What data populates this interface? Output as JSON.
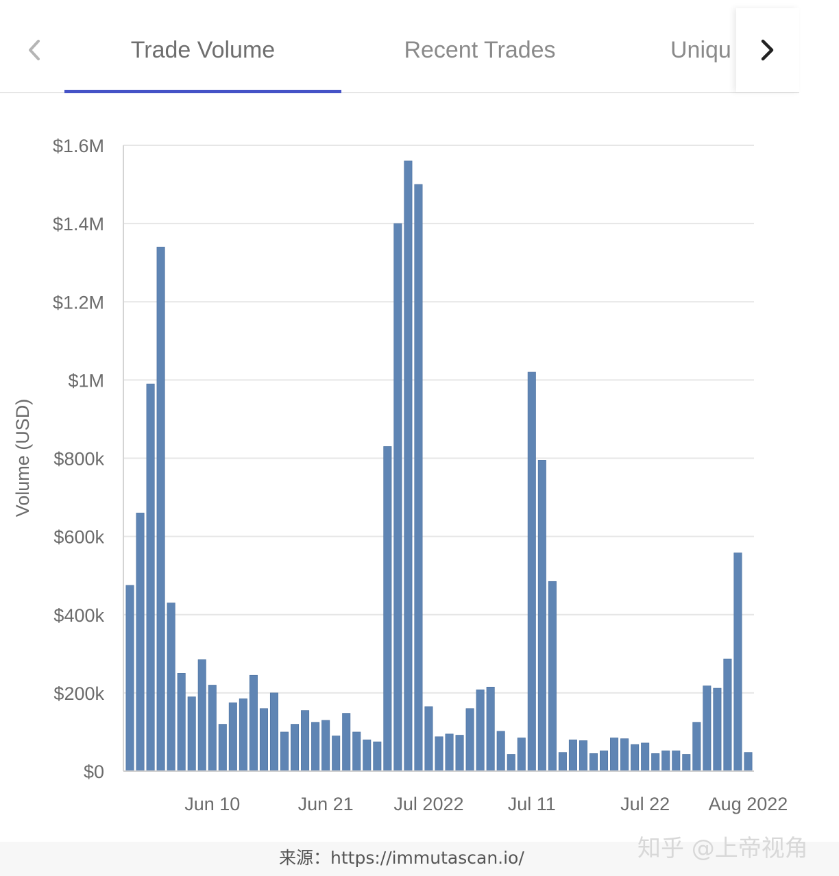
{
  "tabs": [
    {
      "label": "Trade Volume",
      "active": true
    },
    {
      "label": "Recent Trades",
      "active": false
    },
    {
      "label": "Uniqu",
      "active": false
    }
  ],
  "icons": {
    "prev": "chevron-left-icon",
    "next": "chevron-right-icon"
  },
  "colors": {
    "bar": "#5f85b4",
    "accent": "#4553c7",
    "grid": "#e6e6e6"
  },
  "chart_data": {
    "type": "bar",
    "ylabel": "Volume (USD)",
    "ylim": [
      0,
      1600000
    ],
    "y_ticks": [
      {
        "value": 0,
        "label": "$0"
      },
      {
        "value": 200000,
        "label": "$200k"
      },
      {
        "value": 400000,
        "label": "$400k"
      },
      {
        "value": 600000,
        "label": "$600k"
      },
      {
        "value": 800000,
        "label": "$800k"
      },
      {
        "value": 1000000,
        "label": "$1M"
      },
      {
        "value": 1200000,
        "label": "$1.2M"
      },
      {
        "value": 1400000,
        "label": "$1.4M"
      },
      {
        "value": 1600000,
        "label": "$1.6M"
      }
    ],
    "x_ticks": [
      {
        "date": "2022-06-10",
        "label": "Jun 10"
      },
      {
        "date": "2022-06-21",
        "label": "Jun 21"
      },
      {
        "date": "2022-07-01",
        "label": "Jul 2022"
      },
      {
        "date": "2022-07-11",
        "label": "Jul 11"
      },
      {
        "date": "2022-07-22",
        "label": "Jul 22"
      },
      {
        "date": "2022-08-01",
        "label": "Aug 2022"
      }
    ],
    "grid": true,
    "categories": [
      "2022-06-02",
      "2022-06-03",
      "2022-06-04",
      "2022-06-05",
      "2022-06-06",
      "2022-06-07",
      "2022-06-08",
      "2022-06-09",
      "2022-06-10",
      "2022-06-11",
      "2022-06-12",
      "2022-06-13",
      "2022-06-14",
      "2022-06-15",
      "2022-06-16",
      "2022-06-17",
      "2022-06-18",
      "2022-06-19",
      "2022-06-20",
      "2022-06-21",
      "2022-06-22",
      "2022-06-23",
      "2022-06-24",
      "2022-06-25",
      "2022-06-26",
      "2022-06-27",
      "2022-06-28",
      "2022-06-29",
      "2022-06-30",
      "2022-07-01",
      "2022-07-02",
      "2022-07-03",
      "2022-07-04",
      "2022-07-05",
      "2022-07-06",
      "2022-07-07",
      "2022-07-08",
      "2022-07-09",
      "2022-07-10",
      "2022-07-11",
      "2022-07-12",
      "2022-07-13",
      "2022-07-14",
      "2022-07-15",
      "2022-07-16",
      "2022-07-17",
      "2022-07-18",
      "2022-07-19",
      "2022-07-20",
      "2022-07-21",
      "2022-07-22",
      "2022-07-23",
      "2022-07-24",
      "2022-07-25",
      "2022-07-26",
      "2022-07-27",
      "2022-07-28",
      "2022-07-29",
      "2022-07-30",
      "2022-07-31",
      "2022-08-01"
    ],
    "values": [
      475000,
      660000,
      990000,
      1340000,
      430000,
      250000,
      190000,
      285000,
      220000,
      120000,
      175000,
      185000,
      245000,
      160000,
      200000,
      100000,
      120000,
      155000,
      125000,
      130000,
      90000,
      148000,
      100000,
      80000,
      75000,
      830000,
      1400000,
      1560000,
      1500000,
      165000,
      88000,
      95000,
      92000,
      160000,
      208000,
      215000,
      102000,
      43000,
      85000,
      1020000,
      795000,
      485000,
      48000,
      80000,
      78000,
      45000,
      52000,
      85000,
      83000,
      68000,
      72000,
      45000,
      52000,
      52000,
      43000,
      125000,
      218000,
      212000,
      287000,
      558000,
      48000
    ]
  },
  "source_text": "来源：https://immutascan.io/",
  "watermark_text": "知乎 @上帝视角"
}
